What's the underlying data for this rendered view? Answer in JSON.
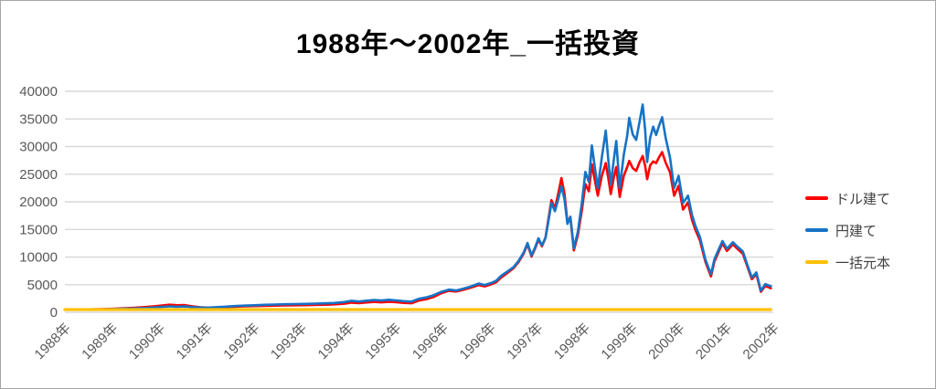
{
  "colors": {
    "grid": "#d9d9d9",
    "axis_text": "#595959",
    "legend_text": "#3f3f3f",
    "border": "#a6a6a6",
    "background": "#ffffff",
    "title_text": "#000000",
    "series_dollar": "#ff0000",
    "series_yen": "#1673c6",
    "series_principal": "#ffc000"
  },
  "chart_data": {
    "type": "line",
    "title": "1988年～2002年_一括投資",
    "grid": "horizontal",
    "legend_position": "right",
    "x_axis": {
      "range_years": [
        1988.0,
        2002.21
      ],
      "tick_labels": [
        "1988年",
        "1989年",
        "1990年",
        "1991年",
        "1992年",
        "1993年",
        "1994年",
        "1995年",
        "1996年",
        "1996年",
        "1997年",
        "1998年",
        "1999年",
        "2000年",
        "2001年",
        "2002年"
      ]
    },
    "y_axis": {
      "range": [
        0,
        40000
      ],
      "ticks": [
        0,
        5000,
        10000,
        15000,
        20000,
        25000,
        30000,
        35000,
        40000
      ]
    },
    "x_years": [
      1988.0,
      1988.2,
      1988.4,
      1988.6,
      1988.8,
      1989.0,
      1989.2,
      1989.4,
      1989.6,
      1989.8,
      1989.95,
      1990.1,
      1990.25,
      1990.4,
      1990.55,
      1990.7,
      1990.85,
      1991.0,
      1991.2,
      1991.4,
      1991.6,
      1991.8,
      1992.0,
      1992.2,
      1992.4,
      1992.6,
      1992.8,
      1993.0,
      1993.2,
      1993.4,
      1993.6,
      1993.75,
      1993.9,
      1994.05,
      1994.2,
      1994.35,
      1994.5,
      1994.65,
      1994.8,
      1994.95,
      1995.1,
      1995.25,
      1995.4,
      1995.55,
      1995.7,
      1995.85,
      1996.0,
      1996.15,
      1996.3,
      1996.42,
      1996.55,
      1996.65,
      1996.75,
      1996.88,
      1997.0,
      1997.1,
      1997.2,
      1997.28,
      1997.36,
      1997.44,
      1997.5,
      1997.57,
      1997.64,
      1997.7,
      1997.76,
      1997.83,
      1997.9,
      1997.96,
      1998.02,
      1998.08,
      1998.14,
      1998.21,
      1998.29,
      1998.37,
      1998.44,
      1998.51,
      1998.57,
      1998.63,
      1998.69,
      1998.77,
      1998.85,
      1998.9,
      1998.95,
      1999.01,
      1999.06,
      1999.13,
      1999.21,
      1999.28,
      1999.32,
      1999.39,
      1999.46,
      1999.53,
      1999.59,
      1999.64,
      1999.68,
      1999.74,
      1999.8,
      1999.86,
      1999.92,
      1999.98,
      2000.05,
      2000.14,
      2000.22,
      2000.31,
      2000.4,
      2000.5,
      2000.58,
      2000.65,
      2000.74,
      2000.85,
      2000.96,
      2001.03,
      2001.1,
      2001.19,
      2001.28,
      2001.4,
      2001.49,
      2001.6,
      2001.69,
      2001.78,
      2001.87,
      2001.96,
      2002.05,
      2002.16
    ],
    "series": [
      {
        "name": "ドル建て",
        "color": "#ff0000",
        "values": [
          460,
          490,
          505,
          540,
          590,
          660,
          740,
          830,
          950,
          1090,
          1230,
          1380,
          1270,
          1310,
          1090,
          930,
          850,
          870,
          940,
          1010,
          1070,
          1120,
          1180,
          1210,
          1240,
          1270,
          1290,
          1320,
          1370,
          1430,
          1560,
          1760,
          1650,
          1780,
          1880,
          1800,
          1910,
          1820,
          1700,
          1640,
          2130,
          2380,
          2800,
          3450,
          3900,
          3760,
          4100,
          4480,
          4950,
          4700,
          5050,
          5430,
          6300,
          7150,
          8000,
          9100,
          10600,
          12300,
          10100,
          11700,
          13150,
          11950,
          13500,
          16900,
          20300,
          18800,
          21600,
          24300,
          21500,
          16300,
          17100,
          11200,
          14000,
          18500,
          23200,
          21900,
          26800,
          23900,
          21100,
          24700,
          27000,
          24300,
          21400,
          24400,
          26300,
          20900,
          24700,
          26300,
          27400,
          26100,
          25600,
          27200,
          28300,
          26500,
          24100,
          26600,
          27300,
          27000,
          28100,
          29000,
          27100,
          25300,
          21100,
          22900,
          18600,
          19900,
          16700,
          14900,
          13000,
          9100,
          6500,
          9200,
          10700,
          12500,
          11100,
          12300,
          11500,
          10600,
          8300,
          6000,
          6900,
          3700,
          4800,
          4350
        ]
      },
      {
        "name": "円建て",
        "color": "#1673c6",
        "values": [
          470,
          500,
          495,
          520,
          550,
          590,
          640,
          700,
          780,
          880,
          980,
          1070,
          1000,
          1050,
          950,
          870,
          840,
          900,
          1010,
          1120,
          1210,
          1280,
          1360,
          1410,
          1450,
          1490,
          1520,
          1560,
          1620,
          1690,
          1850,
          2080,
          1950,
          2100,
          2220,
          2130,
          2260,
          2150,
          2010,
          1930,
          2450,
          2700,
          3100,
          3700,
          4100,
          3950,
          4300,
          4700,
          5200,
          4950,
          5300,
          5700,
          6600,
          7400,
          8200,
          9300,
          10800,
          12550,
          10300,
          11900,
          13390,
          12100,
          13500,
          16500,
          19800,
          18300,
          20600,
          22800,
          20500,
          16000,
          17300,
          11600,
          14600,
          19800,
          25400,
          23600,
          30200,
          26200,
          22500,
          28000,
          32900,
          27600,
          23100,
          27600,
          31000,
          22500,
          28500,
          32000,
          35200,
          32200,
          31200,
          34600,
          37600,
          33000,
          27200,
          31600,
          33600,
          32100,
          33800,
          35300,
          31600,
          27900,
          22500,
          24700,
          19800,
          21100,
          17600,
          15600,
          13600,
          9500,
          6900,
          9600,
          11100,
          12900,
          11500,
          12700,
          11900,
          11000,
          8600,
          6300,
          7200,
          3900,
          5100,
          4700
        ]
      },
      {
        "name": "一括元本",
        "color": "#ffc000",
        "constant_value": 500
      }
    ]
  }
}
